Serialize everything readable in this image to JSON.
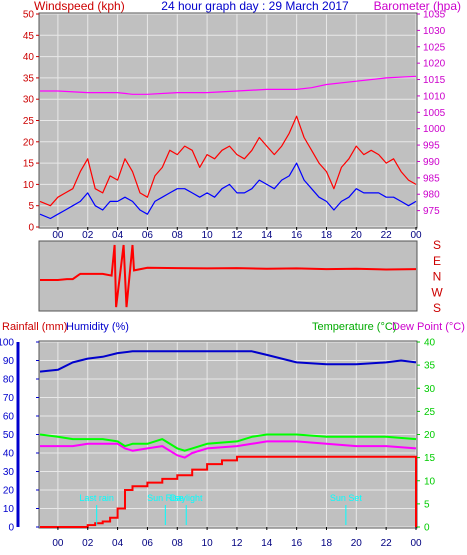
{
  "header": {
    "left_label": "Windspeed (kph)",
    "title": "24 hour graph day : 29 March 2017",
    "right_label": "Barometer (hpa)"
  },
  "lower_header": {
    "rain_label": "Rainfall (mm)",
    "humidity_label": "Humidity (%)",
    "temp_label": "Temperature (°C)",
    "dew_label": "Dew Point (°C)"
  },
  "x_ticks": [
    "00",
    "02",
    "04",
    "06",
    "08",
    "10",
    "12",
    "14",
    "16",
    "18",
    "20",
    "22",
    "00"
  ],
  "direction_labels": [
    "S",
    "E",
    "N",
    "W",
    "S"
  ],
  "annotations": [
    {
      "label": "Last rain",
      "hour": 2.6
    },
    {
      "label": "Sun Rise",
      "hour": 7.2
    },
    {
      "label": "Daylight",
      "hour": 8.6
    },
    {
      "label": "Sun Set",
      "hour": 19.3
    }
  ],
  "colors": {
    "plot_bg": "#c0c0c0",
    "grid": "#e8e8e8",
    "wind_gust": "#ff0000",
    "wind_avg": "#0000ff",
    "barometer": "#ff00ff",
    "direction": "#ff0000",
    "humidity": "#0000cc",
    "temperature": "#00ff00",
    "dewpoint": "#ff00ff",
    "rainfall": "#ff0000",
    "annotation": "#00ffff",
    "left_axis_lower": "#0000cc",
    "right_axis_lower": "#00cc00"
  },
  "chart_data": [
    {
      "type": "line",
      "title": "24 hour graph day : 29 March 2017",
      "xlabel": "",
      "ylabel": "Windspeed (kph)",
      "y2label": "Barometer (hpa)",
      "x_hours_range": [
        -1.2,
        24
      ],
      "ylim": [
        0,
        50
      ],
      "y_ticks": [
        0,
        5,
        10,
        15,
        20,
        25,
        30,
        35,
        40,
        45,
        50
      ],
      "y2lim": [
        970,
        1035
      ],
      "y2_ticks": [
        975,
        980,
        985,
        990,
        995,
        1000,
        1005,
        1010,
        1015,
        1020,
        1025,
        1030,
        1035
      ],
      "grid": true,
      "series": [
        {
          "name": "Windspeed gust",
          "axis": "left",
          "x": [
            -1.2,
            -0.5,
            0,
            0.5,
            1,
            1.5,
            2,
            2.5,
            3,
            3.5,
            4,
            4.5,
            5,
            5.5,
            6,
            6.5,
            7,
            7.5,
            8,
            8.5,
            9,
            9.5,
            10,
            10.5,
            11,
            11.5,
            12,
            12.5,
            13,
            13.5,
            14,
            14.5,
            15,
            15.5,
            16,
            16.5,
            17,
            17.5,
            18,
            18.5,
            19,
            19.5,
            20,
            20.5,
            21,
            21.5,
            22,
            22.5,
            23,
            23.5,
            24
          ],
          "values": [
            6,
            5,
            7,
            8,
            9,
            13,
            16,
            9,
            8,
            12,
            11,
            16,
            13,
            8,
            7,
            12,
            14,
            18,
            17,
            19,
            18,
            14,
            17,
            16,
            18,
            19,
            17,
            16,
            18,
            21,
            19,
            17,
            19,
            22,
            26,
            21,
            18,
            15,
            13,
            9,
            14,
            16,
            19,
            17,
            18,
            17,
            15,
            16,
            13,
            11,
            10
          ]
        },
        {
          "name": "Windspeed average",
          "axis": "left",
          "x": [
            -1.2,
            -0.5,
            0,
            0.5,
            1,
            1.5,
            2,
            2.5,
            3,
            3.5,
            4,
            4.5,
            5,
            5.5,
            6,
            6.5,
            7,
            7.5,
            8,
            8.5,
            9,
            9.5,
            10,
            10.5,
            11,
            11.5,
            12,
            12.5,
            13,
            13.5,
            14,
            14.5,
            15,
            15.5,
            16,
            16.5,
            17,
            17.5,
            18,
            18.5,
            19,
            19.5,
            20,
            20.5,
            21,
            21.5,
            22,
            22.5,
            23,
            23.5,
            24
          ],
          "values": [
            3,
            2,
            3,
            4,
            5,
            6,
            8,
            5,
            4,
            6,
            6,
            7,
            6,
            4,
            3,
            6,
            7,
            8,
            9,
            9,
            8,
            7,
            8,
            7,
            9,
            10,
            8,
            8,
            9,
            11,
            10,
            9,
            11,
            12,
            15,
            11,
            9,
            7,
            6,
            4,
            6,
            7,
            9,
            8,
            8,
            8,
            7,
            7,
            6,
            5,
            6
          ]
        },
        {
          "name": "Barometer",
          "axis": "right",
          "x": [
            -1.2,
            0,
            2,
            4,
            5,
            6,
            8,
            10,
            12,
            14,
            16,
            17,
            18,
            20,
            22,
            24
          ],
          "values": [
            1011.5,
            1011.5,
            1011,
            1011,
            1010.5,
            1010.5,
            1011,
            1011,
            1011.5,
            1012,
            1012,
            1012.5,
            1013.5,
            1014.5,
            1015.5,
            1016
          ]
        }
      ]
    },
    {
      "type": "line",
      "title": "",
      "ylabel": "Wind direction",
      "y_ticks": [
        "S",
        "E",
        "N",
        "W",
        "S"
      ],
      "x_hours_range": [
        -1.2,
        24
      ],
      "series": [
        {
          "name": "Wind direction",
          "unit": "degrees",
          "x": [
            -1.2,
            0,
            0.6,
            1,
            1.4,
            1.5,
            3,
            3.6,
            3.8,
            3.9,
            4.4,
            4.6,
            5,
            5.1,
            6,
            8,
            10,
            12,
            14,
            16,
            18,
            20,
            22,
            24
          ],
          "values": [
            20,
            20,
            15,
            15,
            350,
            345,
            345,
            355,
            180,
            175,
            180,
            175,
            180,
            325,
            310,
            312,
            314,
            312,
            316,
            314,
            318,
            316,
            320,
            318
          ]
        }
      ]
    },
    {
      "type": "line",
      "title": "",
      "ylabel": "Rainfall (mm) / Humidity (%)",
      "y2label": "Temperature (°C) / Dew Point (°C)",
      "x_hours_range": [
        -1.2,
        24
      ],
      "ylim": [
        0,
        100
      ],
      "y_ticks": [
        0,
        10,
        20,
        30,
        40,
        50,
        60,
        70,
        80,
        90,
        100
      ],
      "y2lim": [
        0,
        40
      ],
      "y2_ticks": [
        0,
        5,
        10,
        15,
        20,
        25,
        30,
        35,
        40
      ],
      "grid": true,
      "series": [
        {
          "name": "Humidity",
          "axis": "left",
          "x": [
            -1.2,
            0,
            1,
            2,
            3,
            4,
            5,
            6,
            8,
            10,
            12,
            13,
            14,
            15,
            16,
            18,
            20,
            22,
            23,
            24
          ],
          "values": [
            84,
            85,
            89,
            91,
            92,
            94,
            95,
            95,
            95,
            95,
            95,
            95,
            93,
            91,
            89,
            88,
            88,
            89,
            90,
            89
          ]
        },
        {
          "name": "Temperature",
          "axis": "right",
          "x": [
            -1.2,
            0,
            1,
            2,
            3,
            4,
            4.5,
            5,
            6,
            7,
            8,
            8.5,
            9,
            10,
            12,
            13,
            14,
            16,
            18,
            20,
            22,
            24
          ],
          "values": [
            20,
            19.5,
            19,
            19,
            19,
            18.5,
            17.5,
            18,
            18,
            19,
            17,
            16.5,
            17,
            18,
            18.5,
            19.5,
            20,
            20,
            19.5,
            19.5,
            19.5,
            19
          ]
        },
        {
          "name": "Dew point",
          "axis": "right",
          "x": [
            -1.2,
            0,
            1,
            2,
            3,
            4,
            4.5,
            5,
            6,
            7,
            8,
            8.5,
            9,
            10,
            12,
            13,
            14,
            16,
            18,
            20,
            22,
            24
          ],
          "values": [
            17.5,
            17.5,
            17.5,
            18,
            18,
            18,
            17,
            16.5,
            17,
            17.5,
            15.5,
            15,
            16,
            17,
            17.5,
            18,
            18.5,
            18.5,
            18,
            17.5,
            17.5,
            17
          ]
        },
        {
          "name": "Rainfall",
          "axis": "left",
          "x": [
            -1.2,
            0,
            1,
            2,
            2.5,
            3,
            3.5,
            4,
            4.5,
            5,
            6,
            7,
            8,
            9,
            10,
            11,
            12,
            13,
            14,
            16,
            18,
            20,
            22,
            23.9,
            24
          ],
          "values": [
            0,
            0,
            0,
            1,
            2,
            3,
            5,
            10,
            20,
            22,
            24,
            26,
            28,
            31,
            34,
            36,
            38,
            38,
            38,
            38,
            38,
            38,
            38,
            38,
            0
          ]
        }
      ]
    }
  ]
}
